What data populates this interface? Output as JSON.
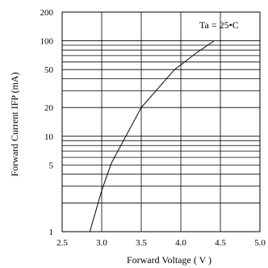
{
  "chart_data": {
    "type": "line",
    "title": "",
    "xlabel": "Forward Voltage ( V )",
    "ylabel": "Forward Current IFP (mA)",
    "annotation": "Ta = 25•C",
    "xlim": [
      2.5,
      5.0
    ],
    "ylim": [
      1,
      200
    ],
    "y_scale": "log",
    "grid": true,
    "x_ticks": [
      2.5,
      3.0,
      3.5,
      4.0,
      4.5,
      5.0
    ],
    "x_tick_labels": [
      "2.5",
      "3.0",
      "3.5",
      "4.0",
      "4.5",
      "5.0"
    ],
    "y_ticks": [
      1,
      5,
      10,
      20,
      50,
      100,
      200
    ],
    "y_tick_labels": [
      "1",
      "5",
      "10",
      "20",
      "50",
      "100",
      "200"
    ],
    "y_gridlines": [
      1,
      2,
      3,
      4,
      5,
      6,
      7,
      8,
      9,
      10,
      20,
      30,
      40,
      50,
      60,
      70,
      80,
      90,
      100,
      200
    ],
    "x": [
      2.85,
      3.0,
      3.12,
      3.5,
      3.92,
      4.2,
      4.42
    ],
    "y": [
      1,
      2.7,
      5.2,
      20,
      50,
      75,
      100
    ],
    "colors": {
      "line": "#000000",
      "grid": "#000000",
      "background": "#ffffff"
    }
  }
}
